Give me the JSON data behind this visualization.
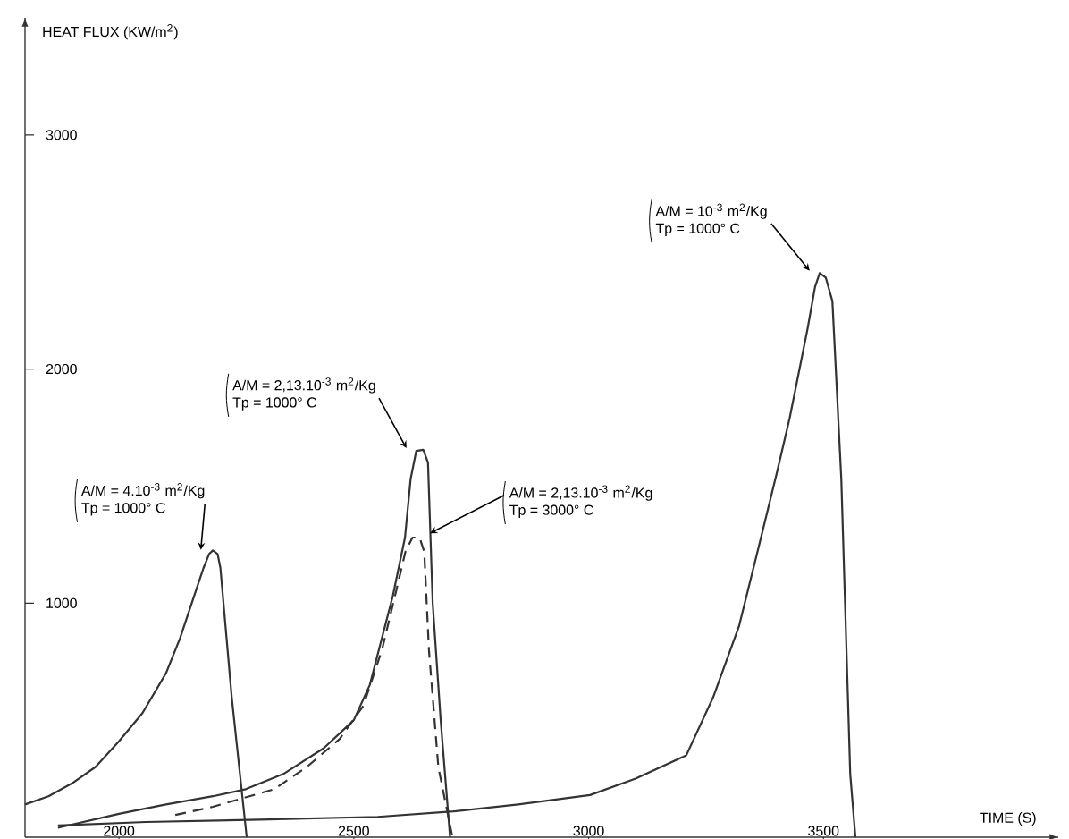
{
  "chart_data": {
    "type": "line",
    "xlabel": "TIME (S)",
    "ylabel": "HEAT FLUX (KW/m$^{2}$)",
    "xlim": [
      1800,
      4000
    ],
    "ylim": [
      0,
      3500
    ],
    "xticks": [
      2000,
      2500,
      3000,
      3500
    ],
    "yticks": [
      1000,
      2000,
      3000
    ],
    "grid": false,
    "marker": "none",
    "series": [
      {
        "color": "#333333",
        "line_style": "solid",
        "x": [
          1800,
          1850,
          1900,
          1950,
          2000,
          2050,
          2100,
          2130,
          2160,
          2180,
          2192,
          2200,
          2210,
          2216,
          2240,
          2272
        ],
        "values": [
          140,
          175,
          230,
          300,
          410,
          530,
          700,
          850,
          1030,
          1150,
          1210,
          1225,
          1210,
          1150,
          600,
          0
        ]
      },
      {
        "color": "#333333",
        "line_style": "solid",
        "x": [
          1870,
          2000,
          2100,
          2200,
          2270,
          2350,
          2436,
          2500,
          2534,
          2583,
          2609,
          2621,
          2633,
          2648,
          2658,
          2668,
          2685,
          2705
        ],
        "values": [
          40,
          100,
          140,
          175,
          205,
          270,
          380,
          500,
          650,
          1030,
          1280,
          1530,
          1650,
          1655,
          1600,
          1000,
          500,
          0
        ]
      },
      {
        "color": "#333333",
        "line_style": "dashed",
        "x": [
          2120,
          2200,
          2330,
          2400,
          2470,
          2520,
          2560,
          2590,
          2610,
          2625,
          2640,
          2650,
          2660,
          2680,
          2710
        ],
        "values": [
          95,
          130,
          205,
          300,
          420,
          560,
          800,
          1050,
          1220,
          1280,
          1280,
          1220,
          800,
          300,
          0
        ]
      },
      {
        "color": "#333333",
        "line_style": "solid",
        "x": [
          1870,
          2057,
          2300,
          2551,
          2712,
          2850,
          3003,
          3100,
          3208,
          3265,
          3320,
          3367,
          3400,
          3428,
          3466,
          3482,
          3492,
          3505,
          3519,
          3538,
          3557,
          3568
        ],
        "values": [
          50,
          65,
          75,
          87,
          110,
          140,
          180,
          250,
          350,
          597,
          900,
          1280,
          1550,
          1790,
          2170,
          2350,
          2410,
          2390,
          2290,
          1530,
          270,
          0
        ]
      }
    ],
    "annotations": [
      {
        "text": "A/M = 4.10$^{-3}$ m$^{2}$/Kg",
        "x": 2174,
        "y": 1220
      },
      "Tp = 1000° C",
      {
        "text": "A/M = 2,13.10$^{-3}$ m$^{2}$/Kg",
        "x": 2614,
        "y": 1655
      },
      "Tp = 1000° C",
      {
        "text": "A/M = 2,13.10$^{-3}$ m$^{2}$/Kg",
        "x": 2659,
        "y": 1295
      },
      "Tp = 3000° C",
      {
        "text": "A/M = 10$^{-3}$ m$^{2}$/Kg",
        "x": 3473,
        "y": 2414
      },
      "Tp = 1000° C"
    ]
  }
}
